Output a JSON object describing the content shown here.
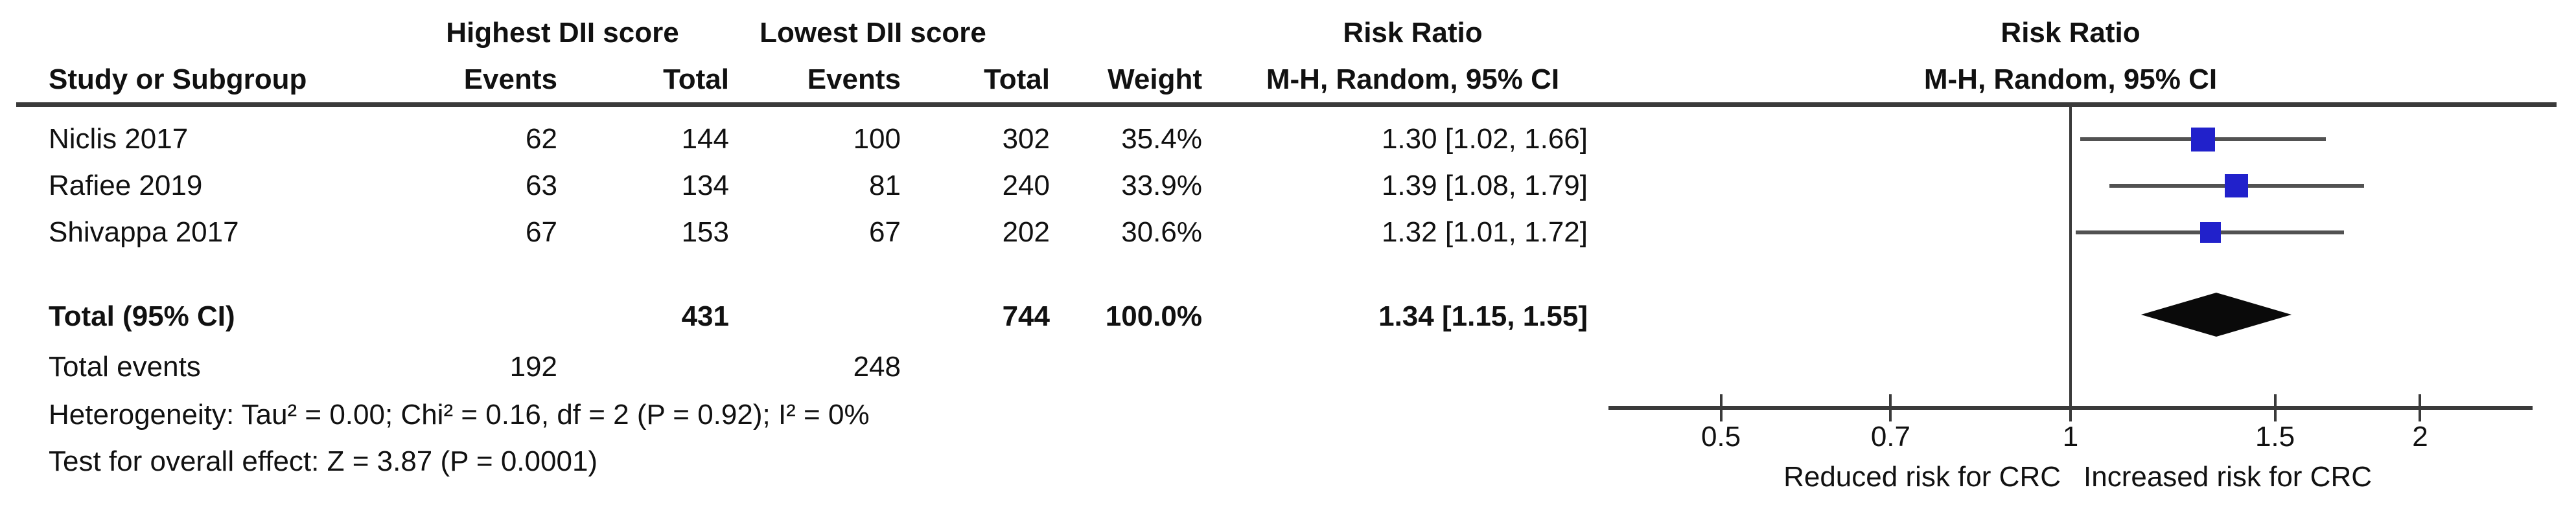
{
  "table": {
    "headers": {
      "group1": "Highest DII score",
      "group2": "Lowest DII score",
      "study": "Study or Subgroup",
      "events": "Events",
      "total": "Total",
      "weight": "Weight",
      "risk_ratio": "Risk Ratio",
      "method": "M-H, Random, 95% CI"
    },
    "rows": [
      {
        "study": "Niclis 2017",
        "events1": "62",
        "total1": "144",
        "events2": "100",
        "total2": "302",
        "weight": "35.4%",
        "rr_text": "1.30 [1.02, 1.66]"
      },
      {
        "study": "Rafiee 2019",
        "events1": "63",
        "total1": "134",
        "events2": "81",
        "total2": "240",
        "weight": "33.9%",
        "rr_text": "1.39 [1.08, 1.79]"
      },
      {
        "study": "Shivappa 2017",
        "events1": "67",
        "total1": "153",
        "events2": "67",
        "total2": "202",
        "weight": "30.6%",
        "rr_text": "1.32 [1.01, 1.72]"
      }
    ],
    "total_row": {
      "label": "Total (95% CI)",
      "total1": "431",
      "total2": "744",
      "weight": "100.0%",
      "rr_text": "1.34 [1.15, 1.55]"
    },
    "total_events": {
      "label": "Total events",
      "events1": "192",
      "events2": "248"
    },
    "heterogeneity": "Heterogeneity: Tau² = 0.00; Chi² = 0.16, df = 2 (P = 0.92); I² = 0%",
    "overall_effect": "Test for overall effect: Z = 3.87 (P = 0.0001)"
  },
  "plot": {
    "left_caption": "Reduced risk for CRC",
    "right_caption": "Increased risk for CRC",
    "marker_color": "#2121cb",
    "ci_line_color": "#525252",
    "axis_color": "#3a3a3a",
    "diamond_color": "#0a0a0a"
  },
  "chart_data": {
    "type": "forest",
    "effect_measure": "Risk Ratio",
    "method": "M-H, Random, 95% CI",
    "x_scale": "log",
    "x_ticks": [
      0.5,
      0.7,
      1,
      1.5,
      2
    ],
    "x_tick_labels": [
      "0.5",
      "0.7",
      "1",
      "1.5",
      "2"
    ],
    "x_range": [
      0.4,
      2.5
    ],
    "axis_captions": [
      "Reduced risk for CRC",
      "Increased risk for CRC"
    ],
    "studies": [
      {
        "name": "Niclis 2017",
        "events_high_dii": 62,
        "total_high_dii": 144,
        "events_low_dii": 100,
        "total_low_dii": 302,
        "weight_pct": 35.4,
        "rr": 1.3,
        "ci_low": 1.02,
        "ci_high": 1.66
      },
      {
        "name": "Rafiee 2019",
        "events_high_dii": 63,
        "total_high_dii": 134,
        "events_low_dii": 81,
        "total_low_dii": 240,
        "weight_pct": 33.9,
        "rr": 1.39,
        "ci_low": 1.08,
        "ci_high": 1.79
      },
      {
        "name": "Shivappa 2017",
        "events_high_dii": 67,
        "total_high_dii": 153,
        "events_low_dii": 67,
        "total_low_dii": 202,
        "weight_pct": 30.6,
        "rr": 1.32,
        "ci_low": 1.01,
        "ci_high": 1.72
      }
    ],
    "total": {
      "label": "Total (95% CI)",
      "total_high_dii": 431,
      "total_low_dii": 744,
      "events_high_dii": 192,
      "events_low_dii": 248,
      "weight_pct": 100.0,
      "rr": 1.34,
      "ci_low": 1.15,
      "ci_high": 1.55
    },
    "heterogeneity": {
      "tau2": 0.0,
      "chi2": 0.16,
      "df": 2,
      "p": 0.92,
      "i2_pct": 0
    },
    "overall_effect": {
      "z": 3.87,
      "p": 0.0001
    }
  }
}
